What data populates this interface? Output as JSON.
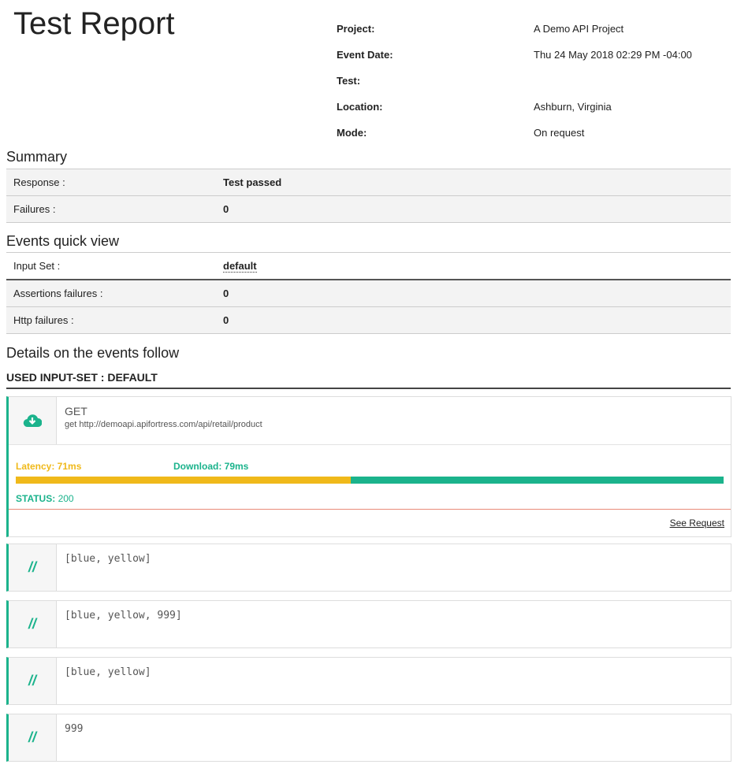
{
  "title": "Test Report",
  "meta": [
    {
      "label": "Project:",
      "value": "A Demo API Project"
    },
    {
      "label": "Event Date:",
      "value": "Thu 24 May 2018 02:29 PM -04:00"
    },
    {
      "label": "Test:",
      "value": ""
    },
    {
      "label": "Location:",
      "value": "Ashburn, Virginia"
    },
    {
      "label": "Mode:",
      "value": "On request"
    }
  ],
  "summary": {
    "heading": "Summary",
    "rows": [
      {
        "label": "Response :",
        "value": "Test passed"
      },
      {
        "label": "Failures :",
        "value": "0"
      }
    ]
  },
  "quick": {
    "heading": "Events quick view",
    "input_label": "Input Set :",
    "input_value": "default",
    "rows": [
      {
        "label": "Assertions failures :",
        "value": "0"
      },
      {
        "label": "Http failures :",
        "value": "0"
      }
    ]
  },
  "details": {
    "heading": "Details on the events follow",
    "used": "USED INPUT-SET : DEFAULT"
  },
  "event": {
    "icon": "cloud-download-icon",
    "method": "GET",
    "desc": "get http://demoapi.apifortress.com/api/retail/product",
    "latency_label": "Latency: 71ms",
    "download_label": "Download: 79ms",
    "latency_ms": 71,
    "download_ms": 79,
    "status_label": "STATUS:",
    "status_value": "200",
    "see_request": "See Request",
    "colors": {
      "latency": "#f0b91a",
      "download": "#1bb38c"
    }
  },
  "comments": [
    {
      "icon": "//",
      "text": "[blue, yellow]"
    },
    {
      "icon": "//",
      "text": "[blue, yellow, 999]"
    },
    {
      "icon": "//",
      "text": "[blue, yellow]"
    },
    {
      "icon": "//",
      "text": "999"
    }
  ]
}
